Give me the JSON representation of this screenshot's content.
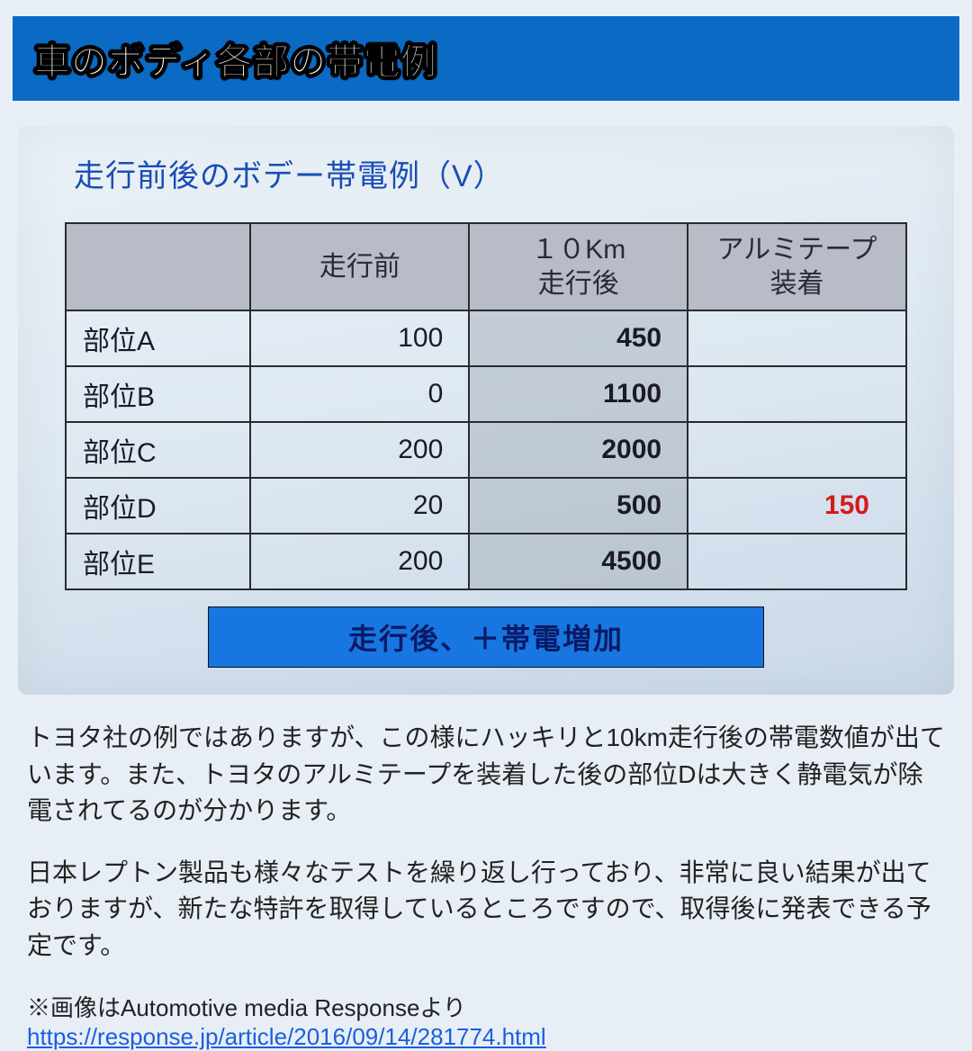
{
  "header": {
    "title": "車のボディ各部の帯電例"
  },
  "slide": {
    "subtitle": "走行前後のボデー帯電例（V）",
    "table": {
      "columns": [
        "",
        "走行前",
        "１０Km\n走行後",
        "アルミテープ\n装着"
      ],
      "rows": [
        {
          "label": "部位A",
          "before": "100",
          "after": "450",
          "alumitape": ""
        },
        {
          "label": "部位B",
          "before": "0",
          "after": "1100",
          "alumitape": ""
        },
        {
          "label": "部位C",
          "before": "200",
          "after": "2000",
          "alumitape": ""
        },
        {
          "label": "部位D",
          "before": "20",
          "after": "500",
          "alumitape": "150",
          "alumitape_highlight": true
        },
        {
          "label": "部位E",
          "before": "200",
          "after": "4500",
          "alumitape": ""
        }
      ],
      "highlight_col_index": 2,
      "colors": {
        "header_bg": "#b7bcc6",
        "border": "#2a2a30",
        "highlight_bg": "rgba(160,168,182,0.45)",
        "highlight_value_color": "#d61a1a"
      }
    },
    "callout": "走行後、＋帯電増加",
    "callout_bg": "#1776e0"
  },
  "body": {
    "p1": "トヨタ社の例ではありますが、この様にハッキリと10km走行後の帯電数値が出ています。また、トヨタのアルミテープを装着した後の部位Dは大きく静電気が除電されてるのが分かります。",
    "p2": "日本レプトン製品も様々なテストを繰り返し行っており、非常に良い結果が出ておりますが、新たな特許を取得しているところですので、取得後に発表できる予定です。"
  },
  "attribution": {
    "prefix": "※画像はAutomotive media Responseより",
    "url": "https://response.jp/article/2016/09/14/281774.html"
  }
}
